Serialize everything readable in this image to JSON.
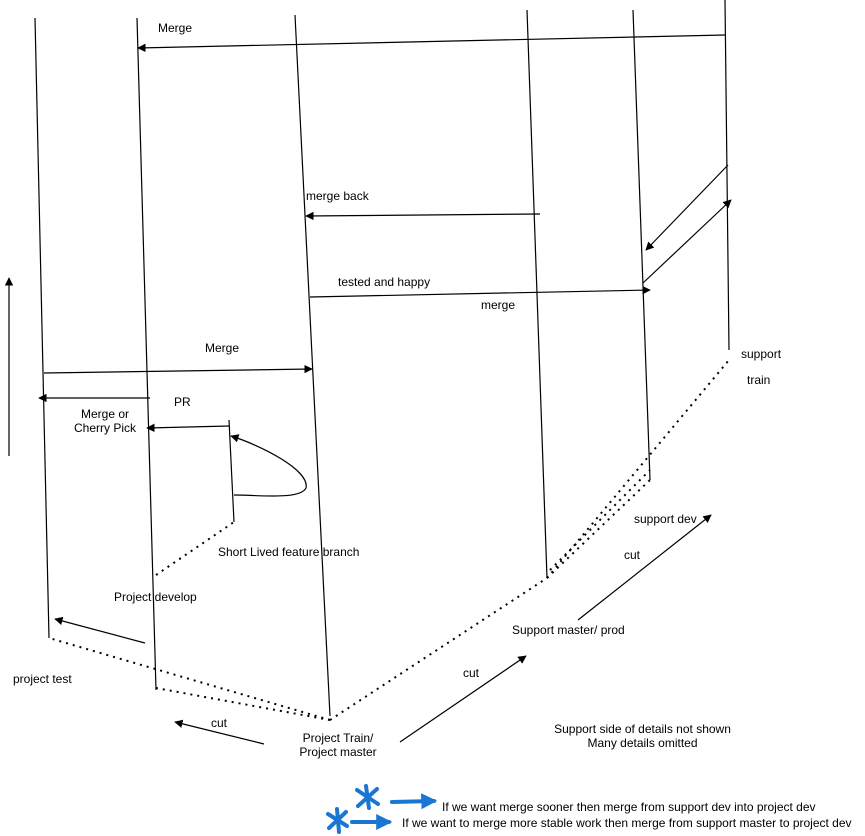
{
  "labels": {
    "merge_top": "Merge",
    "merge_back": "merge back",
    "tested_and_happy": "tested and happy",
    "merge_lower": "merge",
    "merge_mid": "Merge",
    "pr": "PR",
    "merge_or_cherry_pick": [
      "Merge or",
      "Cherry Pick"
    ],
    "support_train": [
      "support",
      "train"
    ],
    "support_dev": "support dev",
    "cut_right": "cut",
    "cut_bottom": "cut",
    "cut_left": "cut",
    "short_lived_feature_branch": "Short Lived feature branch",
    "project_develop": "Project develop",
    "project_test": "project test",
    "support_master_prod": "Support master/ prod",
    "project_train_master": [
      "Project Train/",
      "Project master"
    ]
  },
  "notes": {
    "omitted": [
      "Support side of details not shown",
      "Many details omitted"
    ],
    "legend_sooner": "If we want merge sooner then merge from support dev into project dev",
    "legend_stable": "If we want to merge more stable work then merge from support master to project dev"
  },
  "colors": {
    "line": "#000000",
    "legend_ink": "#1976d2"
  },
  "legend_icons": [
    "asterisk-arrow-icon",
    "asterisk-arrow-icon"
  ]
}
